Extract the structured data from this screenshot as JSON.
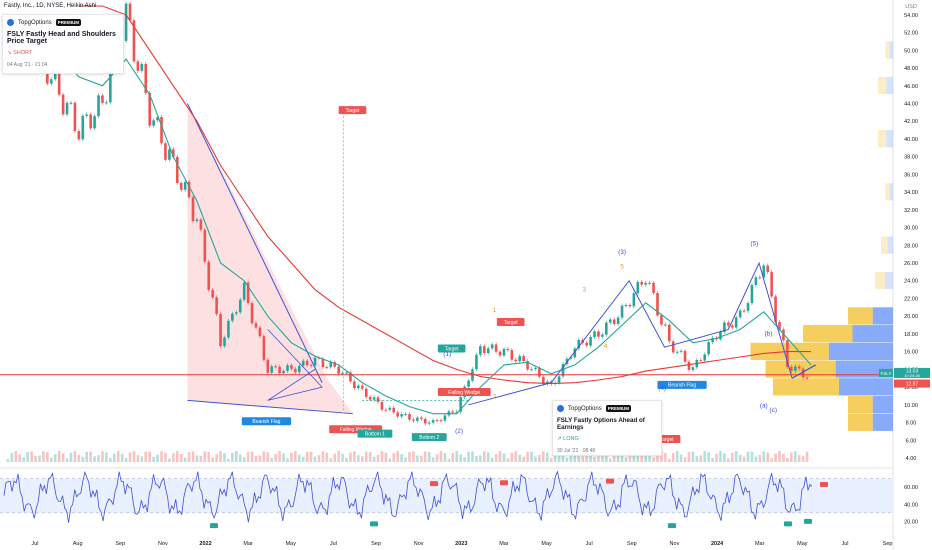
{
  "ticker_header": "Fastly, Inc., 1D, NYSE, Heikin Ashi",
  "ideas": [
    {
      "brand": "TopgOptions",
      "badge": "PREMIUM",
      "title": "FSLY Fastly Head and Shoulders Price Target",
      "direction": "SHORT",
      "date": "04 Aug '21 · 21:04"
    },
    {
      "brand": "TopgOptions",
      "badge": "PREMIUM",
      "title": "FSLY Fastly Options Ahead of Earnings",
      "direction": "LONG",
      "date": "30 Jul '23 · 08:48"
    }
  ],
  "colors": {
    "up": "#26a69a",
    "down": "#ef5350",
    "ma_long": "#e53935",
    "ma_short": "#26a69a",
    "pattern": "#3f51d8",
    "wedge_fill": "#fcd3d6",
    "volume_profile_up": "#7aa2f7",
    "volume_profile_down": "#f5c542",
    "rsi_line": "#3f51d8",
    "rsi_band": "#e3ecff",
    "price_line": "#e53935",
    "wave_label": "#f39c12"
  },
  "chart_data": {
    "type": "line",
    "currency": "USD",
    "ylim": [
      4,
      55
    ],
    "y_ticks": [
      "54.00",
      "52.00",
      "50.00",
      "48.00",
      "46.00",
      "44.00",
      "42.00",
      "40.00",
      "38.00",
      "36.00",
      "34.00",
      "32.00",
      "30.00",
      "28.00",
      "26.00",
      "24.00",
      "22.00",
      "20.00",
      "18.00",
      "16.00",
      "14.00",
      "12.00",
      "10.00",
      "8.00",
      "6.00",
      "4.00"
    ],
    "x_ticks": [
      "Jul",
      "Aug",
      "Sep",
      "Nov",
      "2022",
      "Mar",
      "May",
      "Jul",
      "Sep",
      "Nov",
      "2023",
      "Mar",
      "May",
      "Jul",
      "Sep",
      "Nov",
      "2024",
      "Mar",
      "May",
      "Jul",
      "Sep"
    ],
    "price_series": {
      "name": "FSLY",
      "x": [
        "2021-06",
        "2021-07",
        "2021-08",
        "2021-09",
        "2021-10",
        "2021-11",
        "2021-12",
        "2022-01",
        "2022-02",
        "2022-03",
        "2022-04",
        "2022-05",
        "2022-06",
        "2022-07",
        "2022-08",
        "2022-09",
        "2022-10",
        "2022-11",
        "2022-12",
        "2023-01",
        "2023-02",
        "2023-03",
        "2023-04",
        "2023-05",
        "2023-06",
        "2023-07",
        "2023-08",
        "2023-09",
        "2023-10",
        "2023-11",
        "2023-12",
        "2024-01",
        "2024-02",
        "2024-03",
        "2024-04"
      ],
      "values": [
        49,
        52,
        46,
        41,
        44,
        54,
        43,
        37,
        31,
        17,
        23,
        14,
        14,
        15,
        14,
        11.5,
        9.5,
        8.5,
        8.0,
        9.5,
        16.5,
        16.0,
        14.5,
        12.0,
        16.5,
        18.0,
        20.5,
        24.5,
        17.0,
        14.0,
        18.0,
        20.0,
        26.0,
        14.5,
        13.0
      ]
    },
    "ma_long": {
      "values": [
        null,
        null,
        null,
        55,
        55,
        54,
        50,
        46,
        42,
        37,
        33,
        29,
        26,
        23,
        21,
        19.5,
        18,
        16.5,
        15,
        14,
        13.2,
        12.8,
        12.5,
        12.4,
        12.5,
        12.8,
        13.2,
        13.8,
        14.2,
        14.6,
        15.0,
        15.4,
        15.8,
        16.0,
        16.0
      ]
    },
    "ma_short": {
      "values": [
        null,
        null,
        50,
        47,
        46,
        49,
        45,
        38,
        33,
        26,
        24,
        20,
        17,
        15.5,
        14.5,
        12.5,
        11,
        9.8,
        9.0,
        9.0,
        12,
        14.5,
        14.8,
        13.5,
        14.5,
        16.5,
        19,
        21.5,
        19.5,
        17,
        17.5,
        18.5,
        20.5,
        17.5,
        14.5
      ]
    },
    "last_price": "13.03",
    "last_price_time": "10:24:28",
    "support_price": "12.97",
    "rsi": {
      "y_ticks": [
        "60.00",
        "40.00",
        "20.00"
      ],
      "upper": 70,
      "lower": 30,
      "signals_bear": 4,
      "signals_bull": 5
    },
    "annotations": {
      "pattern_labels": [
        "Bearish Flag",
        "Falling Wedge",
        "Bottom 1",
        "Bottom 2",
        "Falling Wedge",
        "Bearish Flag"
      ],
      "target_labels": [
        "Target",
        "Target",
        "Target",
        "Target"
      ],
      "wave_labels": [
        "(1)",
        "(2)",
        "(3)",
        "(4)",
        "(5)",
        "(a)",
        "(b)",
        "(c)",
        "1",
        "2",
        "3",
        "4",
        "5"
      ]
    }
  }
}
